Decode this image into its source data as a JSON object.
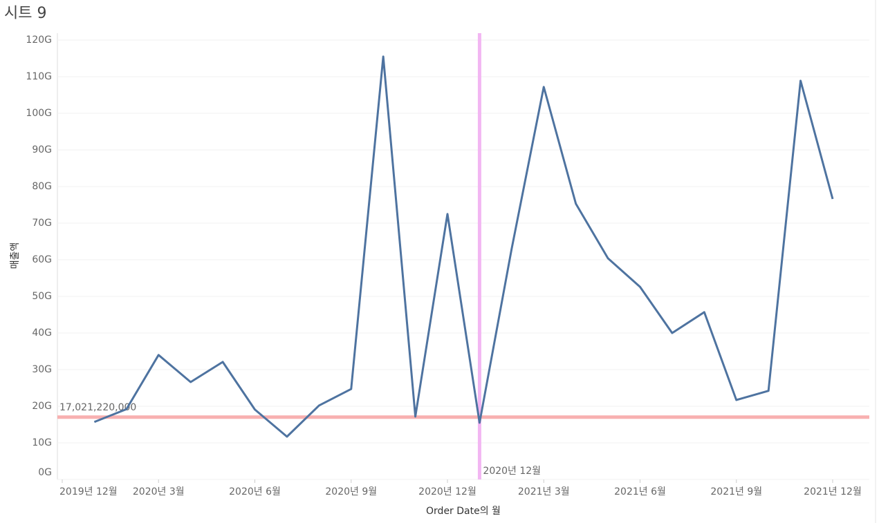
{
  "chart_data": {
    "type": "line",
    "title": "시트 9",
    "y_label": "매출액",
    "x_label": "Order Date의 월",
    "x": [
      "2020-01",
      "2020-02",
      "2020-03",
      "2020-04",
      "2020-05",
      "2020-06",
      "2020-07",
      "2020-08",
      "2020-09",
      "2020-10",
      "2020-11",
      "2020-12",
      "2021-01",
      "2021-02",
      "2021-03",
      "2021-04",
      "2021-05",
      "2021-06",
      "2021-07",
      "2021-08",
      "2021-09",
      "2021-10",
      "2021-11",
      "2021-12"
    ],
    "values": [
      15.7,
      19.2,
      34.0,
      26.6,
      32.1,
      19.1,
      11.7,
      20.2,
      24.7,
      115.5,
      17.2,
      72.5,
      15.5,
      63.0,
      107.2,
      75.3,
      60.4,
      52.6,
      40.0,
      45.7,
      21.7,
      24.2,
      108.9,
      76.6
    ],
    "color": "#4e73a0",
    "xlim": [
      "2019-12",
      "2021-12"
    ],
    "xticks": [
      {
        "value": "2019-12",
        "label": "2019년 12월"
      },
      {
        "value": "2020-03",
        "label": "2020년 3월"
      },
      {
        "value": "2020-06",
        "label": "2020년 6월"
      },
      {
        "value": "2020-09",
        "label": "2020년 9월"
      },
      {
        "value": "2020-12",
        "label": "2020년 12월"
      },
      {
        "value": "2021-03",
        "label": "2021년 3월"
      },
      {
        "value": "2021-06",
        "label": "2021년 6월"
      },
      {
        "value": "2021-09",
        "label": "2021년 9월"
      },
      {
        "value": "2021-12",
        "label": "2021년 12월"
      }
    ],
    "ylim": [
      0,
      120
    ],
    "yticks": [
      {
        "value": 0,
        "label": "0G"
      },
      {
        "value": 10,
        "label": "10G"
      },
      {
        "value": 20,
        "label": "20G"
      },
      {
        "value": 30,
        "label": "30G"
      },
      {
        "value": 40,
        "label": "40G"
      },
      {
        "value": 50,
        "label": "50G"
      },
      {
        "value": 60,
        "label": "60G"
      },
      {
        "value": 70,
        "label": "70G"
      },
      {
        "value": 80,
        "label": "80G"
      },
      {
        "value": 90,
        "label": "90G"
      },
      {
        "value": 100,
        "label": "100G"
      },
      {
        "value": 110,
        "label": "110G"
      },
      {
        "value": 120,
        "label": "120G"
      }
    ],
    "grid": true,
    "reference_lines": {
      "horizontal": {
        "value": 17.02122,
        "label": "17,021,220,000",
        "color": "#f8b0b0"
      },
      "vertical": {
        "value": "2020-12",
        "label": "2020년 12월",
        "color": "#f2b6f2"
      }
    }
  }
}
